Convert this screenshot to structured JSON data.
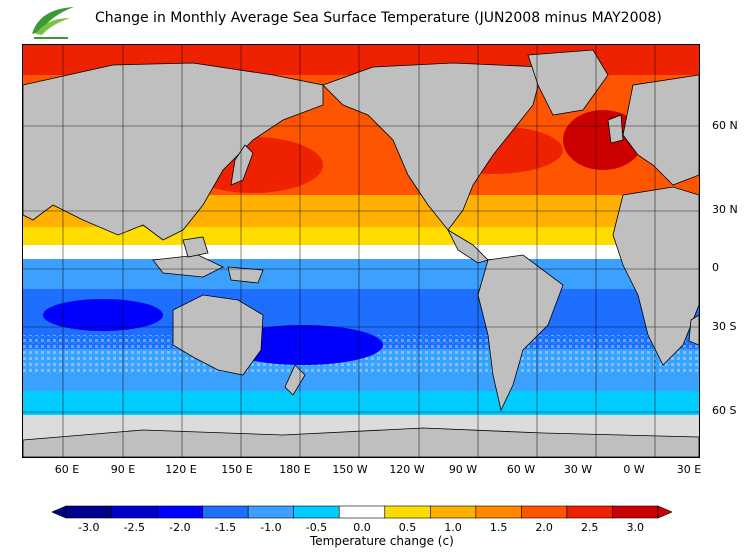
{
  "title": "Change in Monthly Average Sea Surface Temperature (JUN2008 minus MAY2008)",
  "logo": {
    "name": "hko-logo",
    "color": "#3a9a3a"
  },
  "map": {
    "projection": "mercator",
    "land_color": "#bfbfbf",
    "ice_color": "#dcdcdc",
    "latitude_labels": [
      "60 N",
      "30 N",
      "0",
      "30 S",
      "60 S"
    ],
    "longitude_labels": [
      "60 E",
      "90 E",
      "120 E",
      "150 E",
      "180 E",
      "150 W",
      "120 W",
      "90 W",
      "60 W",
      "30 W",
      "0 W",
      "30 E"
    ],
    "regions": [
      {
        "name": "north-pacific",
        "change": 2.5
      },
      {
        "name": "north-atlantic",
        "change": 2.5
      },
      {
        "name": "northern-subtropics",
        "change": 1.0
      },
      {
        "name": "equatorial-band",
        "change": -0.5
      },
      {
        "name": "southern-oceans",
        "change": -1.5
      },
      {
        "name": "southern-ocean-high-lat",
        "change": -0.5
      }
    ]
  },
  "colorbar": {
    "label": "Temperature change  (c)",
    "ticks": [
      "-3.0",
      "-2.5",
      "-2.0",
      "-1.5",
      "-1.0",
      "-0.5",
      "0.0",
      "0.5",
      "1.0",
      "1.5",
      "2.0",
      "2.5",
      "3.0"
    ],
    "colors": [
      "#00008b",
      "#0000cd",
      "#0000ff",
      "#1e6fff",
      "#3ca0ff",
      "#00ccff",
      "#ffffff",
      "#ffdd00",
      "#ffb000",
      "#ff8800",
      "#ff5500",
      "#ee2200",
      "#cc0000"
    ],
    "min": -3.0,
    "max": 3.0
  }
}
